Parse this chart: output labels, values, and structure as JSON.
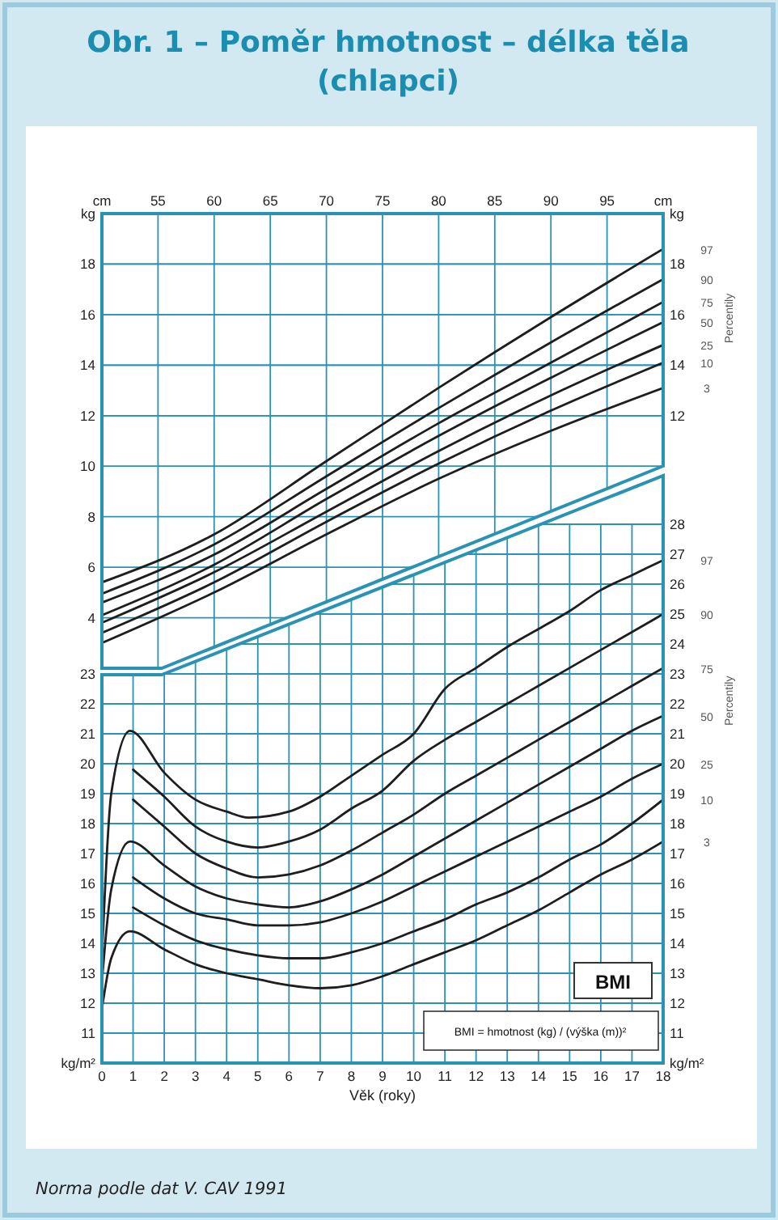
{
  "chart_data": [
    {
      "type": "line",
      "title": "Obr. 1 – Poměr hmotnost – délka těla (chlapci)",
      "legend_title": "Percentily",
      "xlim": [
        50,
        100
      ],
      "xticks": [
        {
          "value": 50,
          "label": "cm"
        },
        55,
        60,
        65,
        70,
        75,
        80,
        85,
        90,
        {
          "value": 95,
          "label": "95"
        },
        {
          "value": 100,
          "label": "cm"
        }
      ],
      "ylim": [
        2,
        20
      ],
      "yticks": [
        4,
        6,
        8,
        10,
        12,
        14,
        16,
        18,
        {
          "value": 20,
          "label": "kg"
        }
      ],
      "y2lim": [
        2,
        20
      ],
      "y2ticks": [
        12,
        14,
        16,
        18,
        {
          "value": 20,
          "label": "kg"
        }
      ],
      "grid": true,
      "x": [
        50,
        60,
        70,
        80,
        90,
        100
      ],
      "series": [
        {
          "name": "97",
          "color": "#1e1e1e",
          "values": [
            5.4,
            7.3,
            10.2,
            13.1,
            15.9,
            18.6
          ]
        },
        {
          "name": "90",
          "color": "#1e1e1e",
          "values": [
            4.95,
            6.9,
            9.6,
            12.3,
            14.9,
            17.4
          ]
        },
        {
          "name": "75",
          "color": "#1e1e1e",
          "values": [
            4.6,
            6.5,
            9.1,
            11.7,
            14.1,
            16.5
          ]
        },
        {
          "name": "50",
          "color": "#1e1e1e",
          "values": [
            4.1,
            6.1,
            8.7,
            11.2,
            13.5,
            15.7
          ]
        },
        {
          "name": "25",
          "color": "#1e1e1e",
          "values": [
            3.8,
            5.8,
            8.2,
            10.6,
            12.8,
            14.8
          ]
        },
        {
          "name": "10",
          "color": "#1e1e1e",
          "values": [
            3.4,
            5.4,
            7.8,
            10.1,
            12.2,
            14.1
          ]
        },
        {
          "name": "3",
          "color": "#1e1e1e",
          "values": [
            3.0,
            5.0,
            7.3,
            9.5,
            11.4,
            13.1
          ]
        }
      ]
    },
    {
      "type": "line",
      "xlabel": "Věk (roky)",
      "legend_title": "Percentily",
      "xlim": [
        0,
        18
      ],
      "xticks": [
        0,
        1,
        2,
        3,
        4,
        5,
        6,
        7,
        8,
        9,
        10,
        11,
        12,
        13,
        14,
        15,
        16,
        17,
        18
      ],
      "ylim": [
        10,
        28
      ],
      "yticks": [
        {
          "value": 10,
          "label": "kg/m²"
        },
        11,
        12,
        13,
        14,
        15,
        16,
        17,
        18,
        19,
        20,
        21,
        22,
        23
      ],
      "y2lim": [
        10,
        28
      ],
      "y2ticks": [
        {
          "value": 10,
          "label": "kg/m²"
        },
        11,
        12,
        13,
        14,
        15,
        16,
        17,
        18,
        19,
        20,
        21,
        22,
        23,
        24,
        25,
        26,
        27,
        28
      ],
      "grid": true,
      "annotations": [
        "BMI",
        "BMI = hmotnost (kg) / (výška (m))²",
        "Norma podle dat V. CAV 1991"
      ],
      "series": [
        {
          "name": "97",
          "color": "#1e1e1e",
          "x": [
            0,
            0.3,
            0.9,
            2,
            3,
            4,
            4.7,
            6,
            7,
            8,
            9,
            10,
            11,
            12,
            13,
            14,
            15,
            16,
            17,
            18
          ],
          "values": [
            13.5,
            19.0,
            21.1,
            19.7,
            18.8,
            18.4,
            18.2,
            18.4,
            18.9,
            19.6,
            20.3,
            21.0,
            22.5,
            23.2,
            23.9,
            24.5,
            25.1,
            25.8,
            26.3,
            26.8
          ]
        },
        {
          "name": "90",
          "color": "#1e1e1e",
          "x": [
            1,
            2,
            3,
            4,
            5,
            6,
            7,
            8,
            9,
            10,
            11,
            12,
            13,
            14,
            15,
            16,
            17,
            18
          ],
          "values": [
            19.8,
            18.9,
            17.9,
            17.4,
            17.2,
            17.4,
            17.8,
            18.5,
            19.1,
            20.1,
            20.8,
            21.4,
            22.0,
            22.6,
            23.2,
            23.8,
            24.4,
            25.0
          ]
        },
        {
          "name": "75",
          "color": "#1e1e1e",
          "x": [
            1,
            2,
            3,
            4,
            5,
            6,
            7,
            8,
            9,
            10,
            11,
            12,
            13,
            14,
            15,
            16,
            17,
            18
          ],
          "values": [
            18.8,
            17.9,
            17.0,
            16.5,
            16.2,
            16.3,
            16.6,
            17.1,
            17.7,
            18.3,
            19.0,
            19.6,
            20.2,
            20.8,
            21.4,
            22.0,
            22.6,
            23.2
          ]
        },
        {
          "name": "50",
          "color": "#1e1e1e",
          "x": [
            0,
            0.3,
            0.9,
            2,
            3,
            4,
            5,
            6,
            7,
            8,
            9,
            10,
            11,
            12,
            13,
            14,
            15,
            16,
            17,
            18
          ],
          "values": [
            12.7,
            15.8,
            17.4,
            16.6,
            15.9,
            15.5,
            15.3,
            15.2,
            15.4,
            15.8,
            16.3,
            16.9,
            17.5,
            18.1,
            18.7,
            19.3,
            19.9,
            20.5,
            21.1,
            21.6
          ]
        },
        {
          "name": "25",
          "color": "#1e1e1e",
          "x": [
            1,
            2,
            3,
            4,
            5,
            6,
            7,
            8,
            9,
            10,
            11,
            12,
            13,
            14,
            15,
            16,
            17,
            18
          ],
          "values": [
            16.2,
            15.5,
            15.0,
            14.8,
            14.6,
            14.6,
            14.7,
            15.0,
            15.4,
            15.9,
            16.4,
            16.9,
            17.4,
            17.9,
            18.4,
            18.9,
            19.5,
            20.0
          ]
        },
        {
          "name": "10",
          "color": "#1e1e1e",
          "x": [
            1,
            2,
            3,
            4,
            5,
            6,
            7,
            8,
            9,
            10,
            11,
            12,
            13,
            14,
            15,
            16,
            17,
            18
          ],
          "values": [
            15.2,
            14.6,
            14.1,
            13.8,
            13.6,
            13.5,
            13.5,
            13.7,
            14.0,
            14.4,
            14.8,
            15.3,
            15.7,
            16.2,
            16.8,
            17.3,
            18.0,
            18.8
          ]
        },
        {
          "name": "3",
          "color": "#1e1e1e",
          "x": [
            0,
            0.3,
            0.9,
            2,
            3,
            4,
            5,
            6,
            7,
            8,
            9,
            10,
            11,
            12,
            13,
            14,
            15,
            16,
            17,
            18
          ],
          "values": [
            11.8,
            13.5,
            14.4,
            13.8,
            13.3,
            13.0,
            12.8,
            12.6,
            12.5,
            12.6,
            12.9,
            13.3,
            13.7,
            14.1,
            14.6,
            15.1,
            15.7,
            16.3,
            16.8,
            17.4
          ]
        }
      ]
    }
  ]
}
